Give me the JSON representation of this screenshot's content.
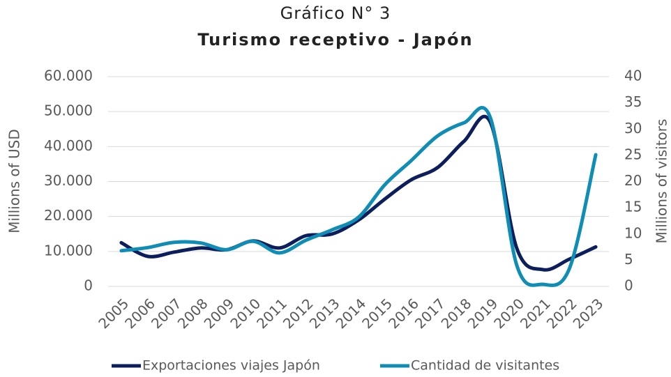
{
  "chart_data": {
    "type": "line",
    "title": "Gráfico N° 3",
    "subtitle": "Turismo receptivo - Japón",
    "y_label": "Millions of USD",
    "y2_label": "Millions of visitors",
    "categories": [
      "2005",
      "2006",
      "2007",
      "2008",
      "2009",
      "2010",
      "2011",
      "2012",
      "2013",
      "2014",
      "2015",
      "2016",
      "2017",
      "2018",
      "2019",
      "2020",
      "2021",
      "2022",
      "2023"
    ],
    "series": [
      {
        "name": "Exportaciones viajes Japón",
        "color": "#0c1f5c",
        "axis": "y",
        "values": [
          12500,
          8600,
          9800,
          11000,
          10500,
          13000,
          11000,
          14500,
          15000,
          19000,
          25000,
          30500,
          34000,
          41500,
          47000,
          11000,
          4800,
          7800,
          11300
        ]
      },
      {
        "name": "Cantidad de visitantes",
        "color": "#0f8db5",
        "axis": "y2",
        "values": [
          6.8,
          7.4,
          8.4,
          8.3,
          7.0,
          8.6,
          6.4,
          8.8,
          10.8,
          13.2,
          19.4,
          24.0,
          28.7,
          31.2,
          32.2,
          4.1,
          0.4,
          3.4,
          25.1
        ]
      }
    ],
    "ylim": [
      0,
      60000
    ],
    "yticks": [
      0,
      {
        "value": 10000,
        "label": "10.000"
      },
      {
        "value": 20000,
        "label": "20.000"
      },
      {
        "value": 30000,
        "label": "30.000"
      },
      {
        "value": 40000,
        "label": "40.000"
      },
      {
        "value": 50000,
        "label": "50.000"
      },
      {
        "value": 60000,
        "label": "60.000"
      }
    ],
    "y2lim": [
      0,
      40
    ],
    "y2ticks": [
      0,
      5,
      10,
      15,
      20,
      25,
      30,
      35,
      40
    ],
    "grid": true,
    "legend": "bottom"
  }
}
